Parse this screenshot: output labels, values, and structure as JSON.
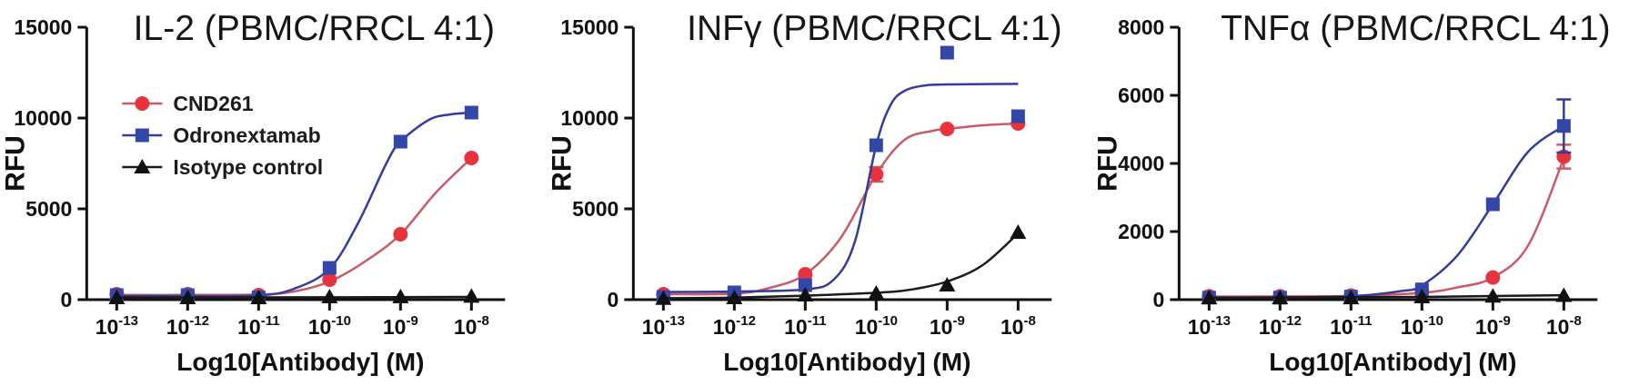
{
  "page": {
    "background": "#ffffff",
    "accent_colors": {
      "cnd261_marker": "#e8333f",
      "cnd261_line": "#c95a68",
      "odronextamab_marker": "#3247a8",
      "odronextamab_line": "#333d99",
      "isotype_marker": "#111111",
      "isotype_line": "#1a1a1a"
    }
  },
  "legend": {
    "items": [
      "CND261",
      "Odronextamab",
      "Isotype control"
    ]
  },
  "chart_data": [
    {
      "type": "line",
      "title": "IL-2 (PBMC/RRCL 4:1)",
      "xlabel": "Log10[Antibody] (M)",
      "ylabel": "RFU",
      "x_exponents": [
        -13,
        -12,
        -11,
        -10,
        -9,
        -8
      ],
      "ylim": [
        0,
        15000
      ],
      "yticks": [
        0,
        5000,
        10000,
        15000
      ],
      "grid": false,
      "legend": true,
      "legend_position": "upper-left-inside",
      "series": [
        {
          "name": "CND261",
          "marker": "circle",
          "color": "#e8333f",
          "line_color": "#c95a68",
          "values": [
            300,
            300,
            250,
            1100,
            3600,
            7800
          ],
          "err": [
            0,
            0,
            0,
            0,
            0,
            0
          ],
          "curve": [
            [
              -13,
              260
            ],
            [
              -12,
              260
            ],
            [
              -11,
              280
            ],
            [
              -10.5,
              450
            ],
            [
              -10,
              1000
            ],
            [
              -9.5,
              2100
            ],
            [
              -9,
              3600
            ],
            [
              -8.5,
              5900
            ],
            [
              -8,
              7800
            ]
          ]
        },
        {
          "name": "Odronextamab",
          "marker": "square",
          "color": "#3247a8",
          "line_color": "#333d99",
          "values": [
            250,
            250,
            120,
            1750,
            8700,
            10300
          ],
          "err": [
            0,
            0,
            0,
            0,
            0,
            0
          ],
          "curve": [
            [
              -13,
              200
            ],
            [
              -12,
              200
            ],
            [
              -11,
              230
            ],
            [
              -10.5,
              600
            ],
            [
              -10,
              1700
            ],
            [
              -9.6,
              4200
            ],
            [
              -9.2,
              7500
            ],
            [
              -9,
              8700
            ],
            [
              -8.6,
              9900
            ],
            [
              -8.3,
              10200
            ],
            [
              -8,
              10300
            ]
          ]
        },
        {
          "name": "Isotype control",
          "marker": "triangle-up",
          "color": "#111111",
          "line_color": "#1a1a1a",
          "values": [
            100,
            100,
            100,
            150,
            150,
            180
          ],
          "err": [
            0,
            0,
            0,
            0,
            0,
            0
          ],
          "curve": [
            [
              -13,
              120
            ],
            [
              -10,
              130
            ],
            [
              -8,
              150
            ]
          ]
        }
      ]
    },
    {
      "type": "line",
      "title": "INFγ (PBMC/RRCL 4:1)",
      "xlabel": "Log10[Antibody] (M)",
      "ylabel": "RFU",
      "x_exponents": [
        -13,
        -12,
        -11,
        -10,
        -9,
        -8
      ],
      "ylim": [
        0,
        15000
      ],
      "yticks": [
        0,
        5000,
        10000,
        15000
      ],
      "grid": false,
      "legend": false,
      "series": [
        {
          "name": "CND261",
          "marker": "circle",
          "color": "#e8333f",
          "line_color": "#c95a68",
          "values": [
            300,
            250,
            1400,
            6900,
            9400,
            9700
          ],
          "err": [
            0,
            0,
            0,
            400,
            0,
            0
          ],
          "curve": [
            [
              -13,
              300
            ],
            [
              -12,
              330
            ],
            [
              -11.5,
              650
            ],
            [
              -11,
              1400
            ],
            [
              -10.5,
              3400
            ],
            [
              -10,
              6900
            ],
            [
              -9.6,
              8800
            ],
            [
              -9.2,
              9300
            ],
            [
              -9,
              9400
            ],
            [
              -8.5,
              9600
            ],
            [
              -8,
              9700
            ]
          ]
        },
        {
          "name": "Odronextamab",
          "marker": "square",
          "color": "#3247a8",
          "line_color": "#333d99",
          "values": [
            150,
            400,
            800,
            8500,
            13600,
            10100
          ],
          "err": [
            0,
            0,
            0,
            0,
            0,
            0
          ],
          "curve": [
            [
              -13,
              420
            ],
            [
              -12,
              450
            ],
            [
              -11,
              560
            ],
            [
              -10.6,
              1100
            ],
            [
              -10.3,
              3200
            ],
            [
              -10,
              8500
            ],
            [
              -9.8,
              10700
            ],
            [
              -9.6,
              11500
            ],
            [
              -9.3,
              11800
            ],
            [
              -9,
              11850
            ],
            [
              -8.5,
              11870
            ],
            [
              -8,
              11880
            ]
          ]
        },
        {
          "name": "Isotype control",
          "marker": "triangle-up",
          "color": "#111111",
          "line_color": "#1a1a1a",
          "values": [
            60,
            100,
            250,
            350,
            800,
            3700
          ],
          "err": [
            0,
            0,
            0,
            0,
            0,
            0
          ],
          "curve": [
            [
              -13,
              80
            ],
            [
              -12,
              110
            ],
            [
              -11,
              220
            ],
            [
              -10,
              380
            ],
            [
              -9.5,
              560
            ],
            [
              -9,
              1000
            ],
            [
              -8.5,
              1900
            ],
            [
              -8,
              3650
            ]
          ]
        }
      ]
    },
    {
      "type": "line",
      "title": "TNFα (PBMC/RRCL 4:1)",
      "xlabel": "Log10[Antibody] (M)",
      "ylabel": "RFU",
      "x_exponents": [
        -13,
        -12,
        -11,
        -10,
        -9,
        -8
      ],
      "ylim": [
        0,
        8000
      ],
      "yticks": [
        0,
        2000,
        4000,
        6000,
        8000
      ],
      "grid": false,
      "legend": false,
      "series": [
        {
          "name": "CND261",
          "marker": "circle",
          "color": "#e8333f",
          "line_color": "#c95a68",
          "values": [
            100,
            100,
            120,
            250,
            650,
            4200
          ],
          "err": [
            0,
            0,
            0,
            0,
            0,
            350
          ],
          "curve": [
            [
              -13,
              90
            ],
            [
              -12,
              95
            ],
            [
              -11,
              110
            ],
            [
              -10,
              200
            ],
            [
              -9.5,
              360
            ],
            [
              -9,
              650
            ],
            [
              -8.5,
              1600
            ],
            [
              -8,
              4150
            ]
          ]
        },
        {
          "name": "Odronextamab",
          "marker": "square",
          "color": "#3247a8",
          "line_color": "#333d99",
          "values": [
            60,
            60,
            90,
            300,
            2800,
            5100
          ],
          "err": [
            0,
            0,
            0,
            0,
            0,
            780
          ],
          "curve": [
            [
              -13,
              60
            ],
            [
              -12,
              65
            ],
            [
              -11,
              100
            ],
            [
              -10.3,
              250
            ],
            [
              -10,
              420
            ],
            [
              -9.5,
              1300
            ],
            [
              -9,
              2800
            ],
            [
              -8.5,
              4350
            ],
            [
              -8,
              5100
            ]
          ]
        },
        {
          "name": "Isotype control",
          "marker": "triangle-up",
          "color": "#111111",
          "line_color": "#1a1a1a",
          "values": [
            50,
            50,
            50,
            80,
            100,
            120
          ],
          "err": [
            0,
            0,
            0,
            0,
            0,
            0
          ],
          "curve": [
            [
              -13,
              60
            ],
            [
              -10,
              80
            ],
            [
              -8,
              130
            ]
          ]
        }
      ]
    }
  ]
}
